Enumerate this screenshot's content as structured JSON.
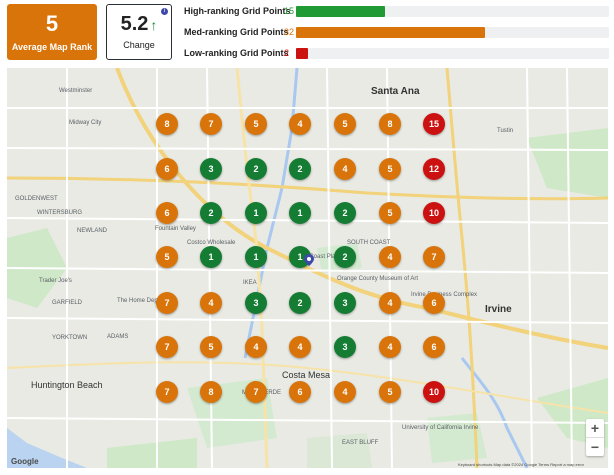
{
  "summary": {
    "average_rank_value": "5",
    "average_rank_label": "Average Map Rank",
    "change_value": "5.2",
    "change_arrow": "↑",
    "change_label": "Change",
    "info_glyph": "i"
  },
  "legend": [
    {
      "label": "High-ranking Grid Points",
      "count": "15",
      "value": 15,
      "color": "#1f9a34"
    },
    {
      "label": "Med-ranking Grid Points",
      "count": "32",
      "value": 32,
      "color": "#d9740b"
    },
    {
      "label": "Low-ranking Grid Points",
      "count": "2",
      "value": 2,
      "color": "#cc1111"
    }
  ],
  "legend_max": 53,
  "grid": [
    [
      "8",
      "7",
      "5",
      "4",
      "5",
      "8",
      "15"
    ],
    [
      "6",
      "3",
      "2",
      "2",
      "4",
      "5",
      "12"
    ],
    [
      "6",
      "2",
      "1",
      "1",
      "2",
      "5",
      "10"
    ],
    [
      "5",
      "1",
      "1",
      "1",
      "2",
      "4",
      "7"
    ],
    [
      "7",
      "4",
      "3",
      "2",
      "3",
      "4",
      "6"
    ],
    [
      "7",
      "5",
      "4",
      "4",
      "3",
      "4",
      "6"
    ],
    [
      "7",
      "8",
      "7",
      "6",
      "4",
      "5",
      "10"
    ]
  ],
  "colors": {
    "green": "#157c33",
    "orange": "#d9740b",
    "red": "#cc1111"
  },
  "map_labels": {
    "santa_ana": "Santa Ana",
    "irvine": "Irvine",
    "huntington_beach": "Huntington Beach",
    "costa_mesa": "Costa Mesa",
    "westminster": "Westminster",
    "tustin": "Tustin",
    "fountain_valley": "Fountain Valley",
    "south_coast": "SOUTH COAST",
    "midway_city": "Midway City",
    "mesa_verde": "MESA VERDE",
    "east_bluff": "EAST BLUFF",
    "garfield": "GARFIELD",
    "goldenwest": "GOLDENWEST",
    "wintersburg": "WINTERSBURG",
    "newland": "NEWLAND",
    "yorktown": "YORKTOWN",
    "adams": "ADAMS",
    "south_coast_plaza": "South Coast Plaza",
    "ikea": "IKEA",
    "costco": "Costco Wholesale",
    "trader_joes": "Trader Joe's",
    "home_depot": "The Home Depot",
    "irvine_spectrum": "Irvine Business Complex",
    "orange_county_museum": "Orange County Museum of Art",
    "angels": "Angels",
    "uci": "University of California Irvine"
  },
  "map_controls": {
    "zoom_in": "+",
    "zoom_out": "−",
    "google": "Google",
    "attribution": "Keyboard shortcuts  Map data ©2024 Google  Terms  Report a map error"
  }
}
